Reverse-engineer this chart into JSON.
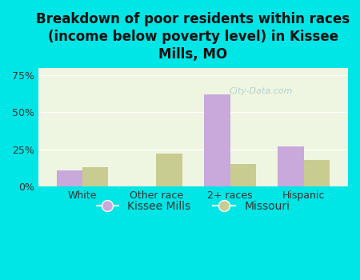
{
  "title": "Breakdown of poor residents within races\n(income below poverty level) in Kissee\nMills, MO",
  "categories": [
    "White",
    "Other race",
    "2+ races",
    "Hispanic"
  ],
  "kissee_mills": [
    11,
    0,
    62,
    27
  ],
  "missouri": [
    13,
    22,
    15,
    18
  ],
  "kissee_color": "#c9a8dc",
  "missouri_color": "#c8cc90",
  "bg_color": "#00e5e5",
  "plot_bg": "#eef5e0",
  "ylim": [
    0,
    80
  ],
  "yticks": [
    0,
    25,
    50,
    75
  ],
  "ytick_labels": [
    "0%",
    "25%",
    "50%",
    "75%"
  ],
  "bar_width": 0.35,
  "title_fontsize": 12,
  "tick_fontsize": 9,
  "legend_fontsize": 10,
  "watermark": "City-Data.com"
}
